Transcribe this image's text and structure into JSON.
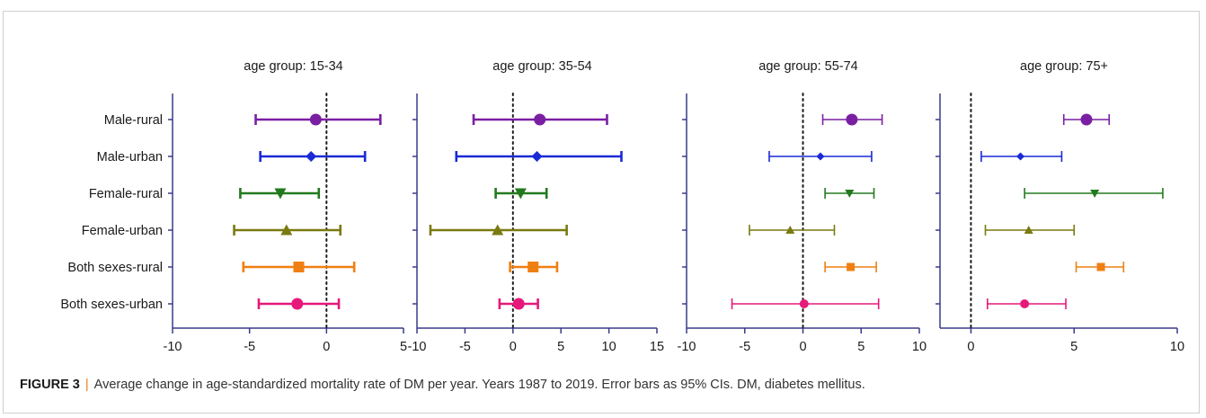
{
  "caption": {
    "label": "FIGURE 3",
    "separator": "|",
    "text": "Average change in age-standardized mortality rate of DM per year. Years 1987 to 2019. Error bars as 95% CIs. DM, diabetes mellitus."
  },
  "colors": {
    "axis": "#3a3a8c",
    "Male-rural": "#7b1fa2",
    "Male-urban": "#1a2ad6",
    "Female-rural": "#237a1e",
    "Female-urban": "#7a7a10",
    "Both sexes-rural": "#f07f12",
    "Both sexes-urban": "#e6197a"
  },
  "chart_data": [
    {
      "type": "scatter",
      "subtype": "forest-plot",
      "title": "age group: 15-34",
      "xlim": [
        -10,
        5
      ],
      "xticks": [
        -10,
        -5,
        0,
        5
      ],
      "categories": [
        "Male-rural",
        "Male-urban",
        "Female-rural",
        "Female-urban",
        "Both sexes-rural",
        "Both sexes-urban"
      ],
      "estimate": [
        -0.7,
        -1.0,
        -3.0,
        -2.6,
        -1.8,
        -1.9
      ],
      "ci_low": [
        -4.6,
        -4.3,
        -5.6,
        -6.0,
        -5.4,
        -4.4
      ],
      "ci_high": [
        3.5,
        2.5,
        -0.5,
        0.9,
        1.8,
        0.8
      ],
      "markers": [
        "circle",
        "diamond",
        "triangle-down",
        "triangle-up",
        "square",
        "circle"
      ],
      "reference_line": 0
    },
    {
      "type": "scatter",
      "subtype": "forest-plot",
      "title": "age group: 35-54",
      "xlim": [
        -10,
        15
      ],
      "xticks": [
        -10,
        -5,
        0,
        5,
        10,
        15
      ],
      "categories": [
        "Male-rural",
        "Male-urban",
        "Female-rural",
        "Female-urban",
        "Both sexes-rural",
        "Both sexes-urban"
      ],
      "estimate": [
        2.8,
        2.5,
        0.8,
        -1.6,
        2.1,
        0.6
      ],
      "ci_low": [
        -4.1,
        -5.9,
        -1.8,
        -8.6,
        -0.3,
        -1.4
      ],
      "ci_high": [
        9.8,
        11.3,
        3.5,
        5.6,
        4.6,
        2.6
      ],
      "markers": [
        "circle",
        "diamond",
        "triangle-down",
        "triangle-up",
        "square",
        "circle"
      ],
      "reference_line": 0
    },
    {
      "type": "scatter",
      "subtype": "forest-plot",
      "title": "age group: 55-74",
      "xlim": [
        -10,
        10
      ],
      "xticks": [
        -10,
        -5,
        0,
        5,
        10
      ],
      "categories": [
        "Male-rural",
        "Male-urban",
        "Female-rural",
        "Female-urban",
        "Both sexes-rural",
        "Both sexes-urban"
      ],
      "estimate": [
        4.2,
        1.5,
        4.0,
        -1.1,
        4.1,
        0.1
      ],
      "ci_low": [
        1.7,
        -2.9,
        1.9,
        -4.6,
        1.9,
        -6.1
      ],
      "ci_high": [
        6.8,
        5.9,
        6.1,
        2.7,
        6.3,
        6.5
      ],
      "markers": [
        "circle",
        "diamond",
        "triangle-down",
        "triangle-up",
        "square",
        "circle"
      ],
      "reference_line": 0
    },
    {
      "type": "scatter",
      "subtype": "forest-plot",
      "title": "age group: 75+",
      "xlim": [
        -1.5,
        10
      ],
      "xticks": [
        0,
        5,
        10
      ],
      "categories": [
        "Male-rural",
        "Male-urban",
        "Female-rural",
        "Female-urban",
        "Both sexes-rural",
        "Both sexes-urban"
      ],
      "estimate": [
        5.6,
        2.4,
        6.0,
        2.8,
        6.3,
        2.6
      ],
      "ci_low": [
        4.5,
        0.5,
        2.6,
        0.7,
        5.1,
        0.8
      ],
      "ci_high": [
        6.7,
        4.4,
        9.3,
        5.0,
        7.4,
        4.6
      ],
      "markers": [
        "circle",
        "diamond",
        "triangle-down",
        "triangle-up",
        "square",
        "circle"
      ],
      "reference_line": 0
    }
  ]
}
